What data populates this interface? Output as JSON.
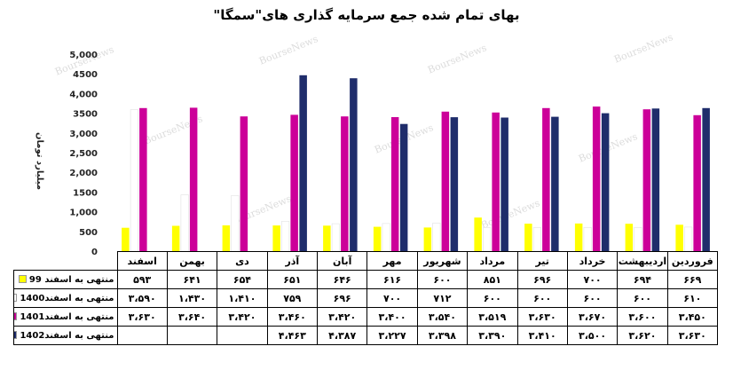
{
  "chart_data": {
    "type": "bar",
    "title": "بهای تمام شده جمع سرمایه گذاری های\"سمگا\"",
    "ylabel": "میلیارد تومان",
    "ylim": [
      0,
      5000
    ],
    "yticks": [
      "0",
      "500",
      "1,000",
      "1500",
      "2,000",
      "2,500",
      "3,000",
      "3500",
      "4,000",
      "4500",
      "5,000"
    ],
    "categories": [
      "فروردین",
      "اردیبهشت",
      "خرداد",
      "تیر",
      "مرداد",
      "شهریور",
      "مهر",
      "آبان",
      "آذر",
      "دی",
      "بهمن",
      "اسفند"
    ],
    "series": [
      {
        "name": "منتهی به اسفند 99",
        "color": "#ffff00",
        "values": [
          669,
          694,
          700,
          696,
          851,
          600,
          616,
          646,
          651,
          654,
          641,
          593
        ],
        "labels": [
          "۶۶۹",
          "۶۹۴",
          "۷۰۰",
          "۶۹۶",
          "۸۵۱",
          "۶۰۰",
          "۶۱۶",
          "۶۴۶",
          "۶۵۱",
          "۶۵۴",
          "۶۴۱",
          "۵۹۳"
        ]
      },
      {
        "name": "منتهی به اسفند1400",
        "color": "#ffffff",
        "values": [
          610,
          600,
          600,
          600,
          600,
          712,
          700,
          696,
          759,
          1410,
          1430,
          3590
        ],
        "labels": [
          "۶۱۰",
          "۶۰۰",
          "۶۰۰",
          "۶۰۰",
          "۶۰۰",
          "۷۱۲",
          "۷۰۰",
          "۶۹۶",
          "۷۵۹",
          "۱،۴۱۰",
          "۱،۴۳۰",
          "۳،۵۹۰"
        ]
      },
      {
        "name": "منتهی به اسفند1401",
        "color": "#cc0099",
        "values": [
          3450,
          3600,
          3670,
          3630,
          3519,
          3540,
          3400,
          3420,
          3460,
          3420,
          3640,
          3630
        ],
        "labels": [
          "۳،۴۵۰",
          "۳،۶۰۰",
          "۳،۶۷۰",
          "۳،۶۳۰",
          "۳،۵۱۹",
          "۳،۵۴۰",
          "۳،۴۰۰",
          "۳،۴۲۰",
          "۳،۴۶۰",
          "۳،۴۲۰",
          "۳،۶۴۰",
          "۳،۶۳۰"
        ]
      },
      {
        "name": "منتهی به اسفند1402",
        "color": "#1f2d6b",
        "values": [
          3630,
          3620,
          3500,
          3410,
          3390,
          3398,
          3227,
          4387,
          4463,
          null,
          null,
          null
        ],
        "labels": [
          "۳،۶۳۰",
          "۳،۶۲۰",
          "۳،۵۰۰",
          "۳،۴۱۰",
          "۳،۳۹۰",
          "۳،۳۹۸",
          "۳،۲۲۷",
          "۴،۳۸۷",
          "۴،۴۶۳",
          "",
          "",
          ""
        ]
      }
    ],
    "grid": false,
    "legend": "table-left"
  },
  "watermark": "BourseNews"
}
